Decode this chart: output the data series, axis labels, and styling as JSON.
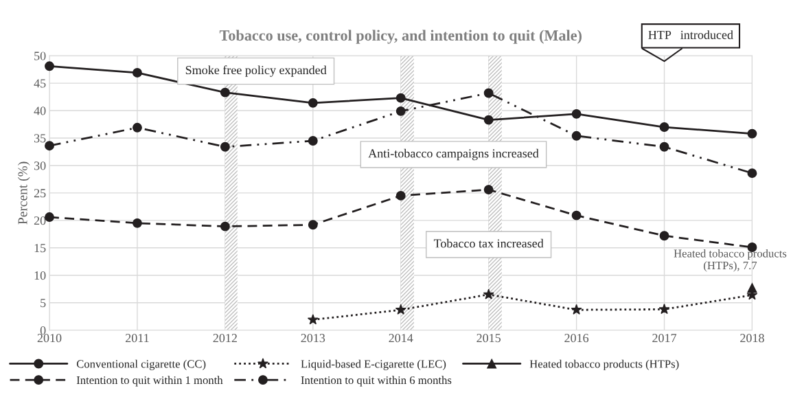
{
  "chart_data": {
    "type": "line",
    "title": "Tobacco use, control policy, and intention to quit (Male)",
    "ylabel": "Percent (%)",
    "x": [
      2010,
      2011,
      2012,
      2013,
      2014,
      2015,
      2016,
      2017,
      2018
    ],
    "xlim": [
      2010,
      2018
    ],
    "xticks": [
      2010,
      2011,
      2012,
      2013,
      2014,
      2015,
      2016,
      2017,
      2018
    ],
    "ylim": [
      0,
      50
    ],
    "yticks": [
      0,
      5,
      10,
      15,
      20,
      25,
      30,
      35,
      40,
      45,
      50
    ],
    "grid": true,
    "legend": "bottom",
    "series": [
      {
        "name": "Conventional cigarette (CC)",
        "color": "#231f20",
        "marker": "circle",
        "line_style": "solid",
        "values": [
          48.1,
          46.9,
          43.3,
          41.4,
          42.3,
          38.3,
          39.4,
          37.0,
          35.8
        ]
      },
      {
        "name": "Liquid-based E-cigarette (LEC)",
        "color": "#231f20",
        "marker": "star",
        "line_style": "dotted",
        "values": [
          null,
          null,
          null,
          1.9,
          3.7,
          6.5,
          3.7,
          3.8,
          6.4
        ]
      },
      {
        "name": "Heated tobacco products (HTPs)",
        "color": "#231f20",
        "marker": "triangle",
        "line_style": "solid",
        "values": [
          null,
          null,
          null,
          null,
          null,
          null,
          null,
          null,
          7.7
        ]
      },
      {
        "name": "Intention to quit within 1 month",
        "color": "#231f20",
        "marker": "circle",
        "line_style": "dashed",
        "values": [
          20.6,
          19.5,
          18.9,
          19.2,
          24.5,
          25.6,
          20.9,
          17.2,
          15.1
        ]
      },
      {
        "name": "Intention to quit within 6 months",
        "color": "#231f20",
        "marker": "circle",
        "line_style": "dashdot",
        "values": [
          33.6,
          36.9,
          33.4,
          34.5,
          39.9,
          43.2,
          35.4,
          33.4,
          28.6
        ]
      }
    ],
    "bands": [
      {
        "axis": "x",
        "from": 2012,
        "to": 2012.14,
        "color": "#bfbfbf"
      },
      {
        "axis": "x",
        "from": 2014,
        "to": 2014.15,
        "color": "#bfbfbf"
      },
      {
        "axis": "x",
        "from": 2015,
        "to": 2015.15,
        "color": "#bfbfbf"
      }
    ],
    "annotations": [
      "Smoke free policy expanded",
      "Anti-tobacco campaigns increased",
      "Tobacco tax increased",
      "HTP   introduced",
      {
        "text": "Heated tobacco products\n(HTPs), 7.7",
        "x": 2018,
        "y": 7.7
      }
    ]
  }
}
